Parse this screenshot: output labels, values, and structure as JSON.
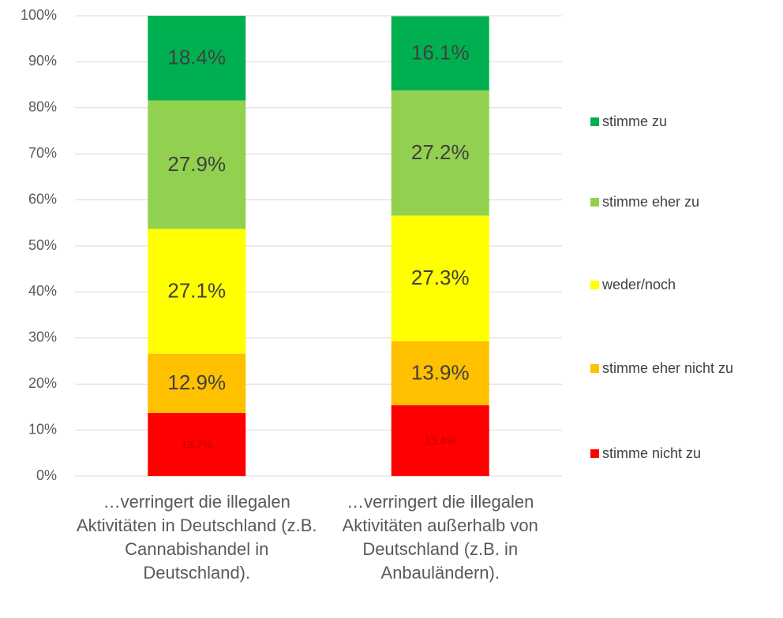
{
  "chart_data": {
    "type": "stacked_bar",
    "categories": [
      "…verringert die illegalen Aktivitäten in Deutschland (z.B. Cannabishandel in Deutschland).",
      "…verringert die illegalen Aktivitäten außerhalb von Deutschland (z.B. in Anbauländern)."
    ],
    "series": [
      {
        "name": "stimme nicht zu",
        "color": "#ff0000",
        "values": [
          13.7,
          15.4
        ],
        "value_labels": [
          "13.7%",
          "15.4%"
        ]
      },
      {
        "name": "stimme eher nicht zu",
        "color": "#ffc000",
        "values": [
          12.9,
          13.9
        ],
        "value_labels": [
          "12.9%",
          "13.9%"
        ]
      },
      {
        "name": "weder/noch",
        "color": "#ffff00",
        "values": [
          27.1,
          27.3
        ],
        "value_labels": [
          "27.1%",
          "27.3%"
        ]
      },
      {
        "name": "stimme eher zu",
        "color": "#92d050",
        "values": [
          27.9,
          27.2
        ],
        "value_labels": [
          "27.9%",
          "27.2%"
        ]
      },
      {
        "name": "stimme zu",
        "color": "#00b050",
        "values": [
          18.4,
          16.1
        ],
        "value_labels": [
          "18.4%",
          "16.1%"
        ]
      }
    ],
    "ylim": [
      0,
      100
    ],
    "yticks": [
      {
        "value": 0,
        "label": "0%"
      },
      {
        "value": 10,
        "label": "10%"
      },
      {
        "value": 20,
        "label": "20%"
      },
      {
        "value": 30,
        "label": "30%"
      },
      {
        "value": 40,
        "label": "40%"
      },
      {
        "value": 50,
        "label": "50%"
      },
      {
        "value": 60,
        "label": "60%"
      },
      {
        "value": 70,
        "label": "70%"
      },
      {
        "value": 80,
        "label": "80%"
      },
      {
        "value": 90,
        "label": "90%"
      },
      {
        "value": 100,
        "label": "100%"
      }
    ],
    "grid": true,
    "legend": "right"
  }
}
